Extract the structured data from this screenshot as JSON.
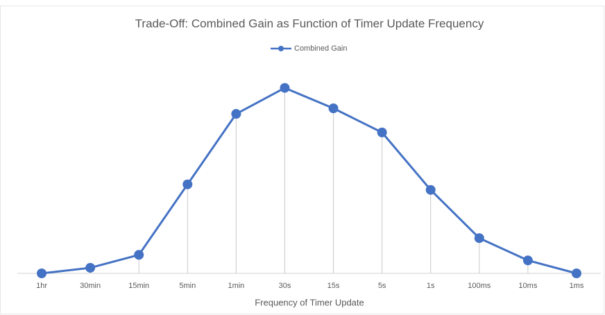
{
  "chart_data": {
    "type": "line",
    "title": "Trade-Off: Combined Gain as Function of Timer Update Frequency",
    "x_label": "Frequency of Timer Update",
    "categories": [
      "1hr",
      "30min",
      "15min",
      "5min",
      "1min",
      "30s",
      "15s",
      "5s",
      "1s",
      "100ms",
      "10ms",
      "1ms"
    ],
    "series": [
      {
        "name": "Combined Gain",
        "color": "#4472c4",
        "values": [
          0,
          3,
          10,
          48,
          86,
          100,
          89,
          76,
          45,
          19,
          7,
          0
        ]
      }
    ],
    "ylim": [
      0,
      110
    ],
    "drop_lines": true,
    "legend": "top"
  }
}
